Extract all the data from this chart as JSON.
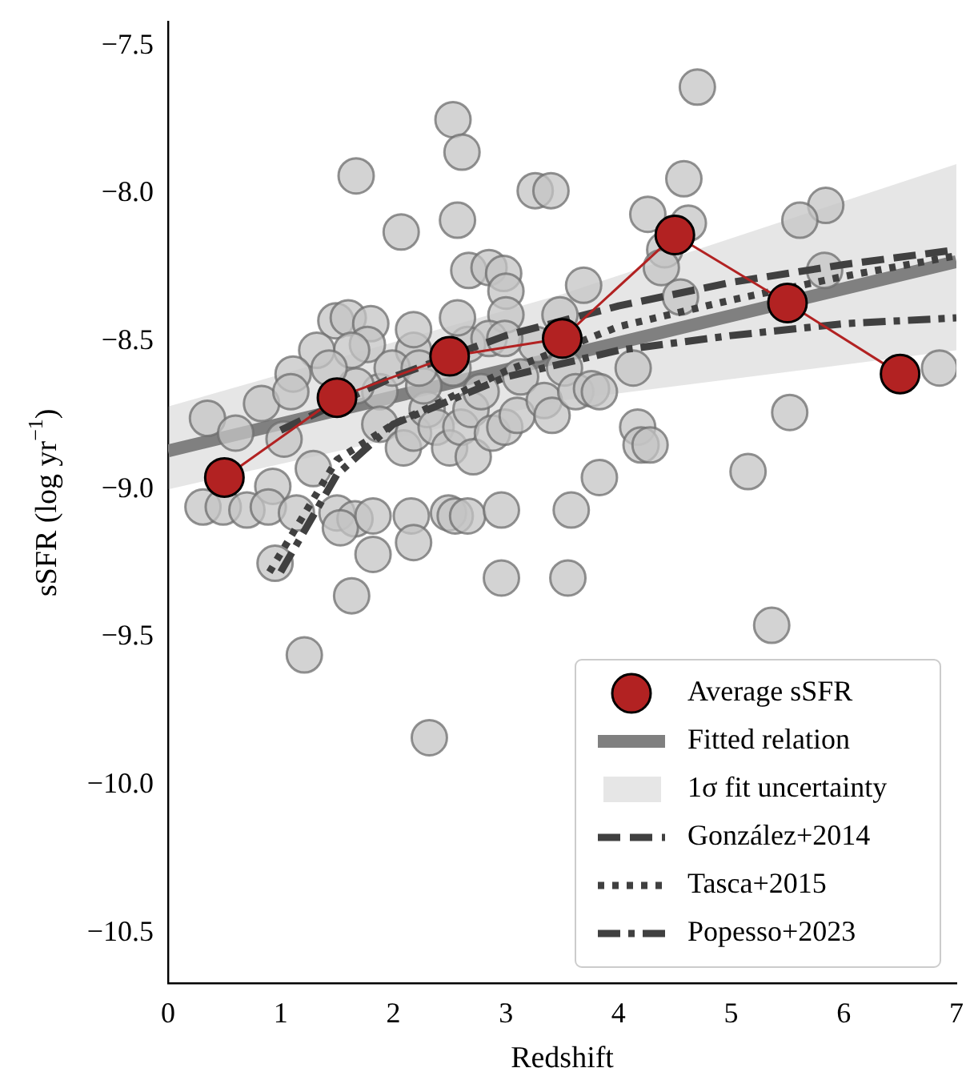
{
  "chart_data": {
    "type": "scatter",
    "xlabel": "Redshift",
    "ylabel": "sSFR (log yr$^{−1}$)",
    "xlim": [
      0,
      7
    ],
    "xticks": [
      0,
      1,
      2,
      3,
      4,
      5,
      6,
      7
    ],
    "ylim": [
      -10.67,
      -7.42
    ],
    "yticks": [
      {
        "value": -10.5,
        "label": "−10.5"
      },
      {
        "value": -10,
        "label": "−10.0"
      },
      {
        "value": -9.5,
        "label": "−9.5"
      },
      {
        "value": -9,
        "label": "−9.0"
      },
      {
        "value": -8.5,
        "label": "−8.5"
      },
      {
        "value": -8,
        "label": "−8.0"
      },
      {
        "value": -7.5,
        "label": "−7.5"
      }
    ],
    "legend": "bottom right",
    "grid": false,
    "annotations": [
      "1σ fit uncertainty"
    ],
    "series": [
      {
        "name": "Average sSFR",
        "type": "line",
        "marker": "circle",
        "line_style": "solid",
        "color": "#b22222",
        "x": [
          0.5,
          1.5,
          2.5,
          3.5,
          4.5,
          5.5,
          6.5
        ],
        "values": [
          -8.96,
          -8.69,
          -8.55,
          -8.49,
          -8.14,
          -8.37,
          -8.61
        ]
      },
      {
        "name": "Fitted relation",
        "type": "line",
        "marker": "none",
        "line_style": "solid",
        "color": "#808080",
        "x": [
          0,
          3.5,
          7
        ],
        "values": [
          -8.87,
          -8.55,
          -8.23
        ],
        "lower": [
          -9.0,
          -8.7,
          -8.53
        ],
        "upper": [
          -8.72,
          -8.34,
          -7.9
        ]
      },
      {
        "name": "González+2014",
        "type": "line",
        "marker": "none",
        "line_style": "dashed",
        "color": "#404040",
        "x": [
          1,
          2,
          3,
          4,
          5,
          6,
          7
        ],
        "values": [
          -8.8,
          -8.62,
          -8.48,
          -8.38,
          -8.3,
          -8.24,
          -8.19
        ]
      },
      {
        "name": "Tasca+2015",
        "type": "line",
        "marker": "none",
        "line_style": "dotted",
        "color": "#404040",
        "x": [
          0.9,
          1.5,
          2,
          3,
          4,
          5,
          6,
          7
        ],
        "values": [
          -9.28,
          -8.9,
          -8.78,
          -8.6,
          -8.45,
          -8.36,
          -8.28,
          -8.21
        ]
      },
      {
        "name": "Popesso+2023",
        "type": "line",
        "marker": "none",
        "line_style": "dashdot",
        "color": "#404040",
        "x": [
          1,
          1.5,
          2,
          3,
          4,
          5,
          6,
          7
        ],
        "values": [
          -9.28,
          -8.95,
          -8.78,
          -8.62,
          -8.53,
          -8.48,
          -8.44,
          -8.42
        ]
      },
      {
        "marker": "circle",
        "color": "#c4c4c4",
        "x": [
          2.53,
          2.61,
          1.67,
          4.7,
          3.26,
          3.4,
          2.07,
          2.57,
          4.62,
          4.58,
          4.26,
          5.84,
          5.61,
          5.83,
          2.67,
          2.85,
          2.98,
          3.0,
          3.69,
          3.0,
          4.41,
          1.49,
          1.6,
          1.8,
          1.77,
          1.63,
          1.32,
          1.11,
          0.35,
          2.53,
          2.18,
          0.6,
          0.83,
          1.03,
          1.09,
          0.31,
          0.49,
          0.7,
          0.93,
          0.89,
          0.95,
          1.14,
          1.29,
          1.5,
          1.66,
          1.53,
          1.82,
          1.82,
          1.63,
          1.21,
          2.16,
          2.18,
          2.49,
          2.55,
          2.66,
          2.96,
          2.96,
          2.32,
          3.55,
          3.58,
          3.83,
          4.17,
          4.2,
          4.28,
          5.15,
          5.36,
          5.52,
          6.85,
          1.88,
          1.99,
          1.88,
          2.09,
          2.18,
          2.3,
          2.38,
          2.5,
          2.6,
          2.69,
          2.71,
          2.78,
          2.88,
          2.99,
          3.1,
          3.13,
          3.34,
          3.41,
          3.52,
          3.62,
          3.76,
          3.83,
          3.48,
          3.27,
          2.27,
          2.23,
          2.66,
          2.57,
          2.85,
          2.99,
          2.18,
          1.67,
          1.43,
          4.13,
          4.38,
          4.55
        ],
        "values": [
          -7.75,
          -7.86,
          -7.94,
          -7.64,
          -7.99,
          -7.99,
          -8.13,
          -8.09,
          -8.1,
          -7.95,
          -8.07,
          -8.04,
          -8.09,
          -8.26,
          -8.26,
          -8.25,
          -8.27,
          -8.33,
          -8.31,
          -8.41,
          -8.19,
          -8.43,
          -8.42,
          -8.44,
          -8.51,
          -8.53,
          -8.53,
          -8.61,
          -8.76,
          -8.59,
          -8.53,
          -8.81,
          -8.71,
          -8.83,
          -8.67,
          -9.06,
          -9.06,
          -9.07,
          -8.99,
          -9.06,
          -9.25,
          -9.08,
          -8.93,
          -9.08,
          -9.1,
          -9.13,
          -9.09,
          -9.22,
          -9.36,
          -9.56,
          -9.09,
          -9.18,
          -9.08,
          -9.09,
          -9.09,
          -9.07,
          -9.3,
          -9.84,
          -9.3,
          -9.07,
          -8.96,
          -8.79,
          -8.85,
          -8.85,
          -8.94,
          -9.46,
          -8.74,
          -8.59,
          -8.67,
          -8.59,
          -8.78,
          -8.86,
          -8.81,
          -8.73,
          -8.79,
          -8.86,
          -8.79,
          -8.73,
          -8.89,
          -8.67,
          -8.81,
          -8.79,
          -8.75,
          -8.62,
          -8.7,
          -8.75,
          -8.59,
          -8.67,
          -8.66,
          -8.67,
          -8.41,
          -8.51,
          -8.65,
          -8.59,
          -8.51,
          -8.42,
          -8.49,
          -8.49,
          -8.46,
          -8.65,
          -8.59,
          -8.59,
          -8.25,
          -8.35
        ]
      }
    ]
  }
}
